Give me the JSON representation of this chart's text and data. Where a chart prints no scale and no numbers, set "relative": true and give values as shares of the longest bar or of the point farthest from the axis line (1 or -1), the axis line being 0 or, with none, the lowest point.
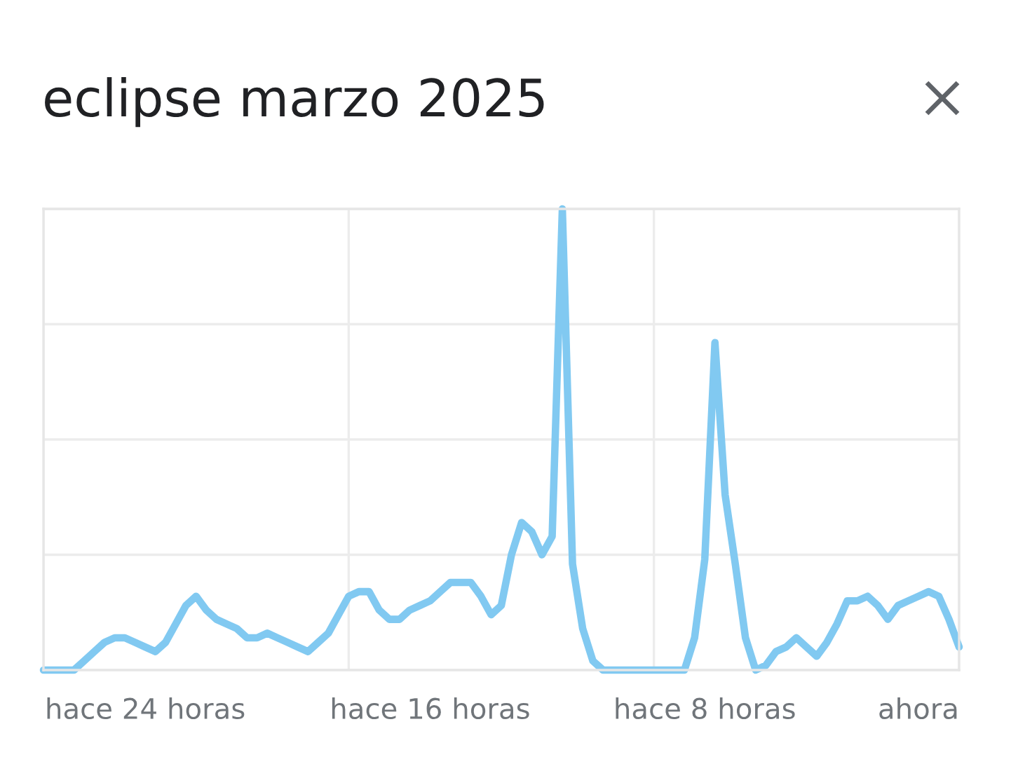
{
  "chart_data": {
    "type": "line",
    "title": "eclipse marzo 2025",
    "relative": true,
    "grid": true,
    "tick_labels": "x",
    "categories": [
      null,
      null,
      null,
      null,
      null,
      null,
      null,
      null,
      null,
      null,
      "hace 24 horas",
      null,
      null,
      null,
      null,
      null,
      null,
      null,
      null,
      null,
      null,
      null,
      null,
      null,
      null,
      null,
      null,
      null,
      null,
      null,
      null,
      null,
      null,
      null,
      null,
      null,
      null,
      null,
      "hace 16 horas",
      null,
      null,
      null,
      null,
      null,
      null,
      null,
      null,
      null,
      null,
      null,
      null,
      null,
      null,
      null,
      null,
      null,
      null,
      null,
      null,
      null,
      null,
      null,
      null,
      null,
      null,
      "hace 8 horas",
      null,
      null,
      null,
      null,
      null,
      null,
      null,
      null,
      null,
      null,
      null,
      null,
      null,
      null,
      null,
      null,
      null,
      null,
      null,
      null,
      "ahora",
      null,
      null,
      null,
      null
    ],
    "series": [
      {
        "color": "#81c9f1",
        "values": [
          0,
          0,
          0,
          0,
          0.02,
          0.04,
          0.06,
          0.07,
          0.07,
          0.06,
          0.05,
          0.04,
          0.06,
          0.1,
          0.14,
          0.16,
          0.13,
          0.11,
          0.1,
          0.09,
          0.07,
          0.07,
          0.08,
          0.07,
          0.06,
          0.05,
          0.04,
          0.06,
          0.08,
          0.12,
          0.16,
          0.17,
          0.17,
          0.13,
          0.11,
          0.11,
          0.13,
          0.14,
          0.15,
          0.17,
          0.19,
          0.19,
          0.19,
          0.16,
          0.12,
          0.14,
          0.25,
          0.32,
          0.3,
          0.25,
          0.29,
          1,
          0.23,
          0.09,
          0.02,
          0,
          0,
          0,
          0,
          0,
          0,
          0,
          0,
          0,
          0.07,
          0.24,
          0.71,
          0.38,
          0.23,
          0.07,
          0,
          0.01,
          0.04,
          0.05,
          0.07,
          0.05,
          0.03,
          0.06,
          0.1,
          0.15,
          0.15,
          0.16,
          0.14,
          0.11,
          0.14,
          0.15,
          0.16,
          0.17,
          0.16,
          0.11,
          0.05
        ]
      }
    ]
  }
}
